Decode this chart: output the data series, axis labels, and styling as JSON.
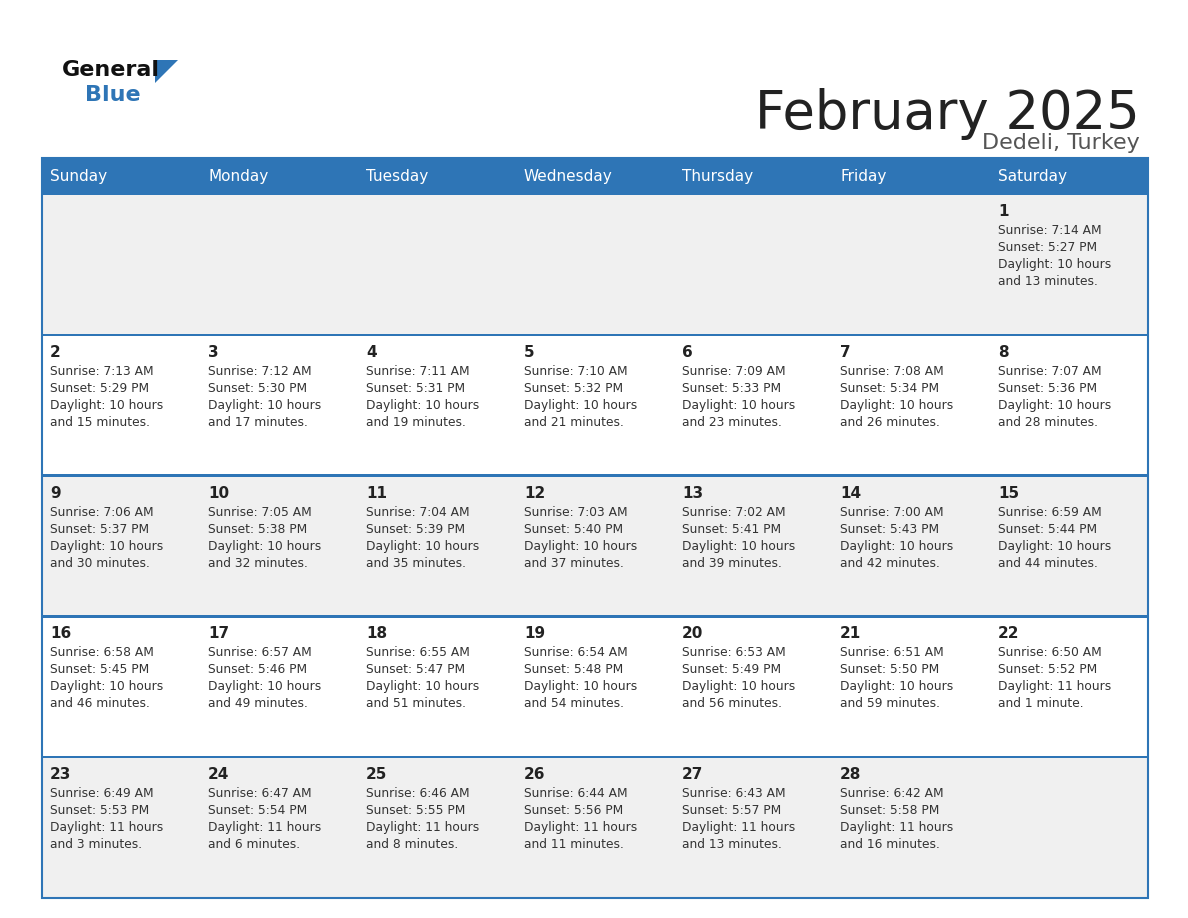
{
  "title": "February 2025",
  "subtitle": "Dedeli, Turkey",
  "header_color": "#2E75B6",
  "header_text_color": "#FFFFFF",
  "bg_color": "#FFFFFF",
  "cell_bg_even": "#F0F0F0",
  "cell_bg_odd": "#FFFFFF",
  "border_color": "#2E75B6",
  "text_color": "#333333",
  "day_num_color": "#222222",
  "day_names": [
    "Sunday",
    "Monday",
    "Tuesday",
    "Wednesday",
    "Thursday",
    "Friday",
    "Saturday"
  ],
  "days": [
    {
      "day": 1,
      "col": 6,
      "row": 0,
      "sunrise": "7:14 AM",
      "sunset": "5:27 PM",
      "daylight_hours": 10,
      "daylight_minutes": 13
    },
    {
      "day": 2,
      "col": 0,
      "row": 1,
      "sunrise": "7:13 AM",
      "sunset": "5:29 PM",
      "daylight_hours": 10,
      "daylight_minutes": 15
    },
    {
      "day": 3,
      "col": 1,
      "row": 1,
      "sunrise": "7:12 AM",
      "sunset": "5:30 PM",
      "daylight_hours": 10,
      "daylight_minutes": 17
    },
    {
      "day": 4,
      "col": 2,
      "row": 1,
      "sunrise": "7:11 AM",
      "sunset": "5:31 PM",
      "daylight_hours": 10,
      "daylight_minutes": 19
    },
    {
      "day": 5,
      "col": 3,
      "row": 1,
      "sunrise": "7:10 AM",
      "sunset": "5:32 PM",
      "daylight_hours": 10,
      "daylight_minutes": 21
    },
    {
      "day": 6,
      "col": 4,
      "row": 1,
      "sunrise": "7:09 AM",
      "sunset": "5:33 PM",
      "daylight_hours": 10,
      "daylight_minutes": 23
    },
    {
      "day": 7,
      "col": 5,
      "row": 1,
      "sunrise": "7:08 AM",
      "sunset": "5:34 PM",
      "daylight_hours": 10,
      "daylight_minutes": 26
    },
    {
      "day": 8,
      "col": 6,
      "row": 1,
      "sunrise": "7:07 AM",
      "sunset": "5:36 PM",
      "daylight_hours": 10,
      "daylight_minutes": 28
    },
    {
      "day": 9,
      "col": 0,
      "row": 2,
      "sunrise": "7:06 AM",
      "sunset": "5:37 PM",
      "daylight_hours": 10,
      "daylight_minutes": 30
    },
    {
      "day": 10,
      "col": 1,
      "row": 2,
      "sunrise": "7:05 AM",
      "sunset": "5:38 PM",
      "daylight_hours": 10,
      "daylight_minutes": 32
    },
    {
      "day": 11,
      "col": 2,
      "row": 2,
      "sunrise": "7:04 AM",
      "sunset": "5:39 PM",
      "daylight_hours": 10,
      "daylight_minutes": 35
    },
    {
      "day": 12,
      "col": 3,
      "row": 2,
      "sunrise": "7:03 AM",
      "sunset": "5:40 PM",
      "daylight_hours": 10,
      "daylight_minutes": 37
    },
    {
      "day": 13,
      "col": 4,
      "row": 2,
      "sunrise": "7:02 AM",
      "sunset": "5:41 PM",
      "daylight_hours": 10,
      "daylight_minutes": 39
    },
    {
      "day": 14,
      "col": 5,
      "row": 2,
      "sunrise": "7:00 AM",
      "sunset": "5:43 PM",
      "daylight_hours": 10,
      "daylight_minutes": 42
    },
    {
      "day": 15,
      "col": 6,
      "row": 2,
      "sunrise": "6:59 AM",
      "sunset": "5:44 PM",
      "daylight_hours": 10,
      "daylight_minutes": 44
    },
    {
      "day": 16,
      "col": 0,
      "row": 3,
      "sunrise": "6:58 AM",
      "sunset": "5:45 PM",
      "daylight_hours": 10,
      "daylight_minutes": 46
    },
    {
      "day": 17,
      "col": 1,
      "row": 3,
      "sunrise": "6:57 AM",
      "sunset": "5:46 PM",
      "daylight_hours": 10,
      "daylight_minutes": 49
    },
    {
      "day": 18,
      "col": 2,
      "row": 3,
      "sunrise": "6:55 AM",
      "sunset": "5:47 PM",
      "daylight_hours": 10,
      "daylight_minutes": 51
    },
    {
      "day": 19,
      "col": 3,
      "row": 3,
      "sunrise": "6:54 AM",
      "sunset": "5:48 PM",
      "daylight_hours": 10,
      "daylight_minutes": 54
    },
    {
      "day": 20,
      "col": 4,
      "row": 3,
      "sunrise": "6:53 AM",
      "sunset": "5:49 PM",
      "daylight_hours": 10,
      "daylight_minutes": 56
    },
    {
      "day": 21,
      "col": 5,
      "row": 3,
      "sunrise": "6:51 AM",
      "sunset": "5:50 PM",
      "daylight_hours": 10,
      "daylight_minutes": 59
    },
    {
      "day": 22,
      "col": 6,
      "row": 3,
      "sunrise": "6:50 AM",
      "sunset": "5:52 PM",
      "daylight_hours": 11,
      "daylight_minutes": 1
    },
    {
      "day": 23,
      "col": 0,
      "row": 4,
      "sunrise": "6:49 AM",
      "sunset": "5:53 PM",
      "daylight_hours": 11,
      "daylight_minutes": 3
    },
    {
      "day": 24,
      "col": 1,
      "row": 4,
      "sunrise": "6:47 AM",
      "sunset": "5:54 PM",
      "daylight_hours": 11,
      "daylight_minutes": 6
    },
    {
      "day": 25,
      "col": 2,
      "row": 4,
      "sunrise": "6:46 AM",
      "sunset": "5:55 PM",
      "daylight_hours": 11,
      "daylight_minutes": 8
    },
    {
      "day": 26,
      "col": 3,
      "row": 4,
      "sunrise": "6:44 AM",
      "sunset": "5:56 PM",
      "daylight_hours": 11,
      "daylight_minutes": 11
    },
    {
      "day": 27,
      "col": 4,
      "row": 4,
      "sunrise": "6:43 AM",
      "sunset": "5:57 PM",
      "daylight_hours": 11,
      "daylight_minutes": 13
    },
    {
      "day": 28,
      "col": 5,
      "row": 4,
      "sunrise": "6:42 AM",
      "sunset": "5:58 PM",
      "daylight_hours": 11,
      "daylight_minutes": 16
    }
  ]
}
